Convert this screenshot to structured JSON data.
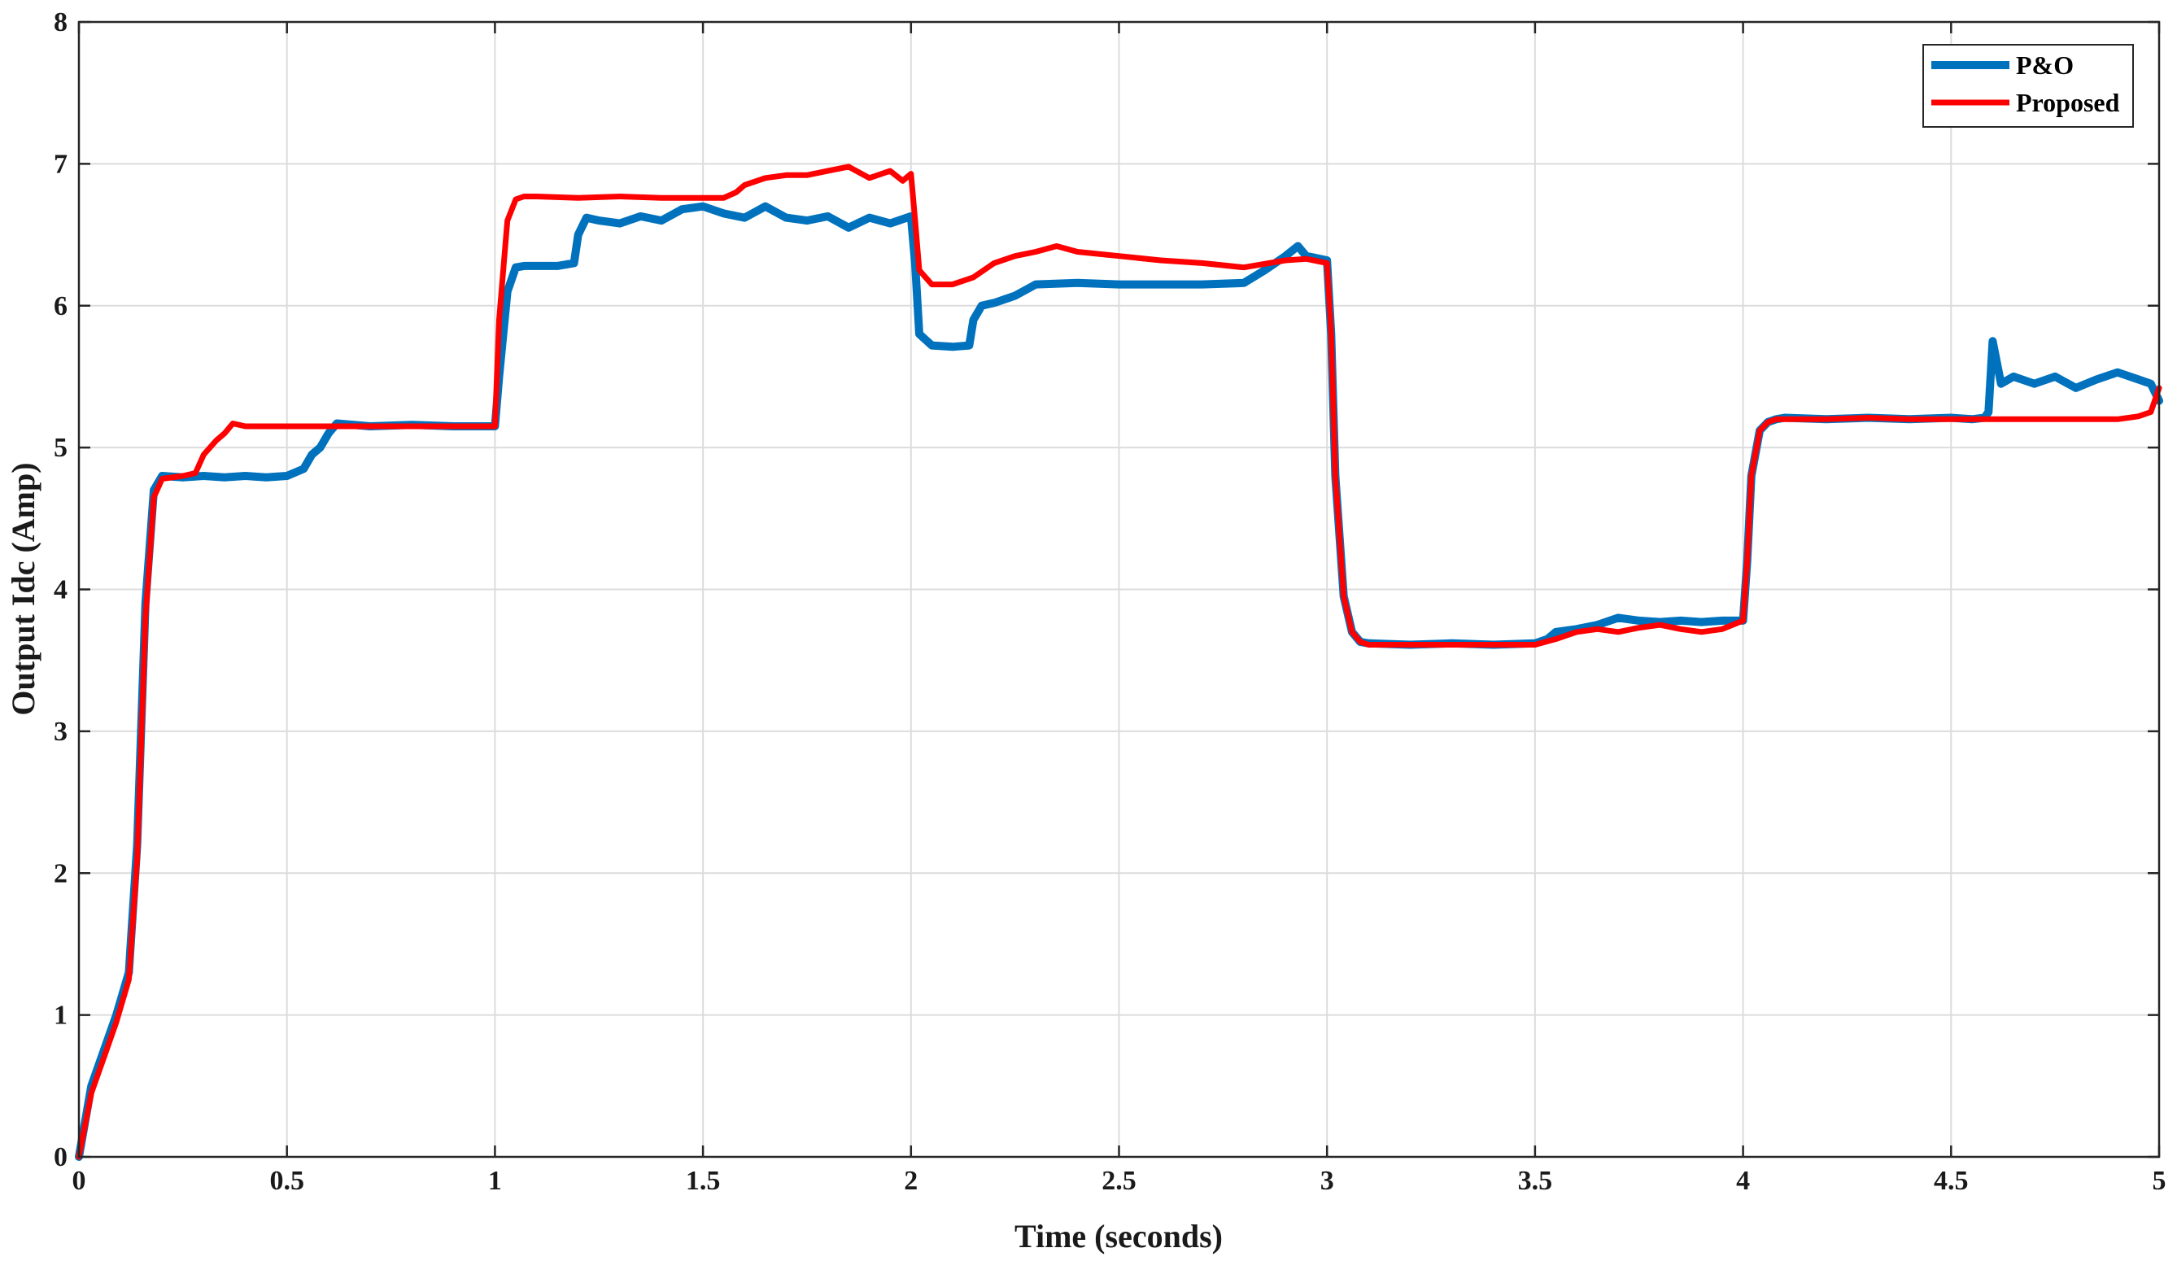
{
  "chart_data": {
    "type": "line",
    "title": "",
    "xlabel": "Time (seconds)",
    "ylabel": "Output Idc (Amp)",
    "xlim": [
      0,
      5
    ],
    "ylim": [
      0,
      8
    ],
    "xticks": [
      0,
      0.5,
      1,
      1.5,
      2,
      2.5,
      3,
      3.5,
      4,
      4.5,
      5
    ],
    "xtick_labels": [
      "0",
      "0.5",
      "1",
      "1.5",
      "2",
      "2.5",
      "3",
      "3.5",
      "4",
      "4.5",
      "5"
    ],
    "yticks": [
      0,
      1,
      2,
      3,
      4,
      5,
      6,
      7,
      8
    ],
    "ytick_labels": [
      "0",
      "1",
      "2",
      "3",
      "4",
      "5",
      "6",
      "7",
      "8"
    ],
    "grid": true,
    "legend_position": "top-right",
    "series": [
      {
        "name": "P&O",
        "color": "#0072bd",
        "x": [
          0,
          0.03,
          0.06,
          0.09,
          0.12,
          0.14,
          0.16,
          0.18,
          0.2,
          0.25,
          0.3,
          0.35,
          0.4,
          0.45,
          0.5,
          0.54,
          0.56,
          0.58,
          0.6,
          0.62,
          0.7,
          0.8,
          0.9,
          1.0,
          1.01,
          1.03,
          1.05,
          1.07,
          1.1,
          1.15,
          1.19,
          1.2,
          1.22,
          1.25,
          1.3,
          1.35,
          1.4,
          1.45,
          1.5,
          1.55,
          1.6,
          1.65,
          1.7,
          1.75,
          1.8,
          1.85,
          1.9,
          1.95,
          2.0,
          2.01,
          2.02,
          2.05,
          2.1,
          2.14,
          2.15,
          2.17,
          2.2,
          2.25,
          2.3,
          2.4,
          2.5,
          2.6,
          2.7,
          2.8,
          2.85,
          2.9,
          2.93,
          2.95,
          3.0,
          3.01,
          3.02,
          3.04,
          3.06,
          3.08,
          3.1,
          3.2,
          3.3,
          3.4,
          3.5,
          3.53,
          3.55,
          3.6,
          3.65,
          3.7,
          3.75,
          3.8,
          3.85,
          3.9,
          3.95,
          4.0,
          4.01,
          4.02,
          4.04,
          4.06,
          4.08,
          4.1,
          4.2,
          4.3,
          4.4,
          4.5,
          4.55,
          4.58,
          4.59,
          4.6,
          4.62,
          4.65,
          4.7,
          4.75,
          4.8,
          4.85,
          4.9,
          4.95,
          4.98,
          5.0
        ],
        "y": [
          0,
          0.5,
          0.75,
          1.0,
          1.3,
          2.2,
          3.9,
          4.7,
          4.8,
          4.79,
          4.8,
          4.79,
          4.8,
          4.79,
          4.8,
          4.85,
          4.95,
          5.0,
          5.1,
          5.17,
          5.15,
          5.16,
          5.15,
          5.15,
          5.5,
          6.1,
          6.27,
          6.28,
          6.28,
          6.28,
          6.3,
          6.5,
          6.62,
          6.6,
          6.58,
          6.63,
          6.6,
          6.68,
          6.7,
          6.65,
          6.62,
          6.7,
          6.62,
          6.6,
          6.63,
          6.55,
          6.62,
          6.58,
          6.63,
          6.3,
          5.8,
          5.72,
          5.71,
          5.72,
          5.9,
          6.0,
          6.02,
          6.07,
          6.15,
          6.16,
          6.15,
          6.15,
          6.15,
          6.16,
          6.25,
          6.35,
          6.42,
          6.35,
          6.32,
          5.8,
          4.8,
          3.95,
          3.7,
          3.63,
          3.62,
          3.61,
          3.62,
          3.61,
          3.62,
          3.65,
          3.7,
          3.72,
          3.75,
          3.8,
          3.78,
          3.77,
          3.78,
          3.77,
          3.78,
          3.78,
          4.2,
          4.8,
          5.12,
          5.18,
          5.2,
          5.21,
          5.2,
          5.21,
          5.2,
          5.21,
          5.2,
          5.21,
          5.25,
          5.75,
          5.45,
          5.5,
          5.45,
          5.5,
          5.42,
          5.48,
          5.53,
          5.48,
          5.45,
          5.33
        ]
      },
      {
        "name": "Proposed",
        "color": "#ff0000",
        "x": [
          0,
          0.03,
          0.06,
          0.09,
          0.12,
          0.14,
          0.16,
          0.18,
          0.2,
          0.25,
          0.28,
          0.3,
          0.33,
          0.35,
          0.37,
          0.4,
          0.5,
          0.6,
          0.7,
          0.8,
          0.9,
          1.0,
          1.01,
          1.03,
          1.05,
          1.07,
          1.1,
          1.2,
          1.3,
          1.4,
          1.5,
          1.55,
          1.58,
          1.6,
          1.65,
          1.7,
          1.75,
          1.8,
          1.85,
          1.9,
          1.95,
          1.98,
          2.0,
          2.01,
          2.02,
          2.05,
          2.1,
          2.15,
          2.2,
          2.25,
          2.3,
          2.35,
          2.4,
          2.5,
          2.6,
          2.7,
          2.8,
          2.9,
          2.95,
          3.0,
          3.01,
          3.02,
          3.04,
          3.06,
          3.08,
          3.1,
          3.2,
          3.3,
          3.4,
          3.5,
          3.55,
          3.6,
          3.65,
          3.7,
          3.75,
          3.8,
          3.85,
          3.9,
          3.95,
          4.0,
          4.01,
          4.02,
          4.04,
          4.06,
          4.08,
          4.1,
          4.2,
          4.3,
          4.4,
          4.5,
          4.6,
          4.7,
          4.8,
          4.9,
          4.95,
          4.98,
          5.0
        ],
        "y": [
          0,
          0.45,
          0.7,
          0.95,
          1.25,
          2.1,
          3.8,
          4.65,
          4.78,
          4.8,
          4.82,
          4.95,
          5.05,
          5.1,
          5.17,
          5.15,
          5.15,
          5.15,
          5.15,
          5.15,
          5.15,
          5.15,
          5.9,
          6.6,
          6.75,
          6.77,
          6.77,
          6.76,
          6.77,
          6.76,
          6.76,
          6.76,
          6.8,
          6.85,
          6.9,
          6.92,
          6.92,
          6.95,
          6.98,
          6.9,
          6.95,
          6.88,
          6.93,
          6.6,
          6.25,
          6.15,
          6.15,
          6.2,
          6.3,
          6.35,
          6.38,
          6.42,
          6.38,
          6.35,
          6.32,
          6.3,
          6.27,
          6.32,
          6.33,
          6.3,
          5.8,
          4.8,
          3.95,
          3.7,
          3.63,
          3.61,
          3.61,
          3.61,
          3.61,
          3.61,
          3.65,
          3.7,
          3.72,
          3.7,
          3.73,
          3.75,
          3.72,
          3.7,
          3.72,
          3.78,
          4.2,
          4.8,
          5.12,
          5.18,
          5.2,
          5.2,
          5.2,
          5.21,
          5.2,
          5.2,
          5.2,
          5.2,
          5.2,
          5.2,
          5.22,
          5.25,
          5.42
        ]
      }
    ]
  }
}
